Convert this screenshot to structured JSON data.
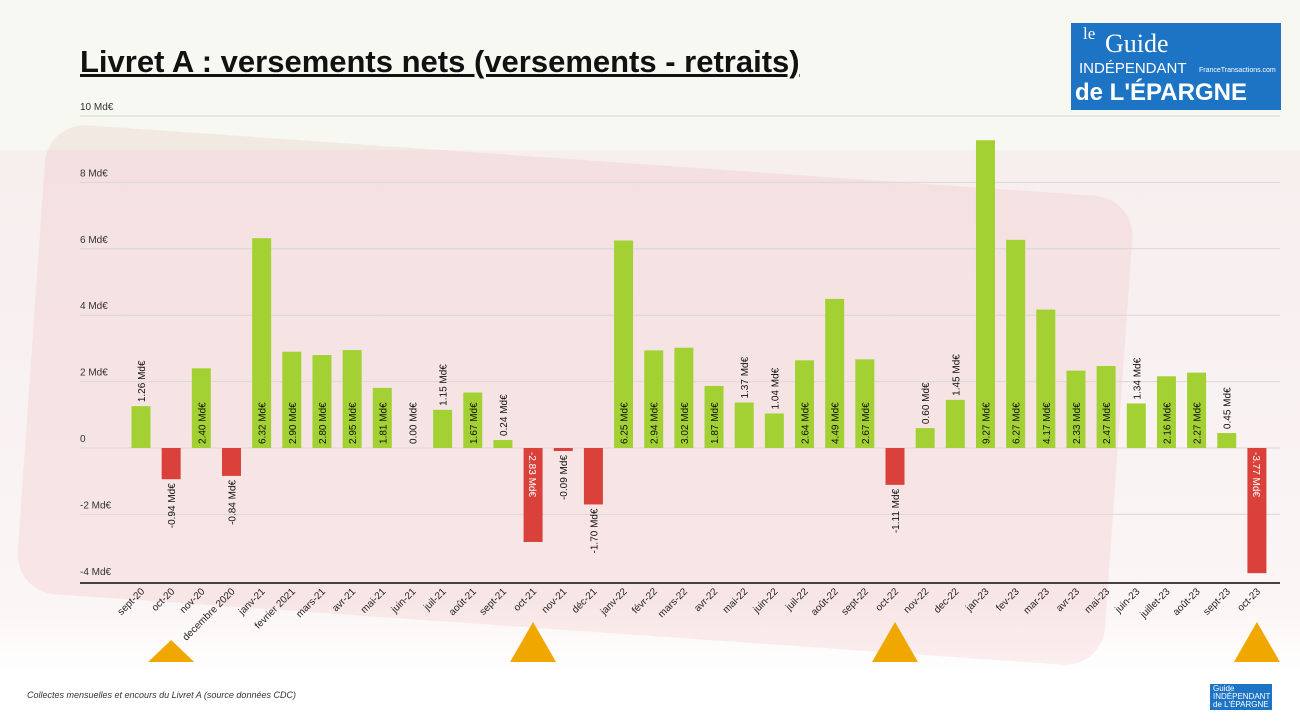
{
  "header": {
    "title": "Livret A : versements nets (versements - retraits)"
  },
  "logo": {
    "line1": "le",
    "line2": "Guide",
    "line3": "INDÉPENDANT",
    "line4": "de L'ÉPARGNE",
    "tagline": "FranceTransactions.com"
  },
  "footer": {
    "source": "Collectes mensuelles et encours du Livret A (source données CDC)",
    "small_logo": "Guide INDÉPENDANT de L'ÉPARGNE"
  },
  "chart_data": {
    "type": "bar",
    "title": "Livret A : versements nets (versements - retraits)",
    "xlabel": "",
    "ylabel": "",
    "ylim": [
      -4,
      10
    ],
    "yticks": [
      10,
      8,
      6,
      4,
      2,
      0,
      -2,
      -4
    ],
    "ytick_labels": [
      "10 Md€",
      "8 Md€",
      "6 Md€",
      "4 Md€",
      "2 Md€",
      "0",
      "-2 Md€",
      "-4 Md€"
    ],
    "grid": true,
    "unit": "Md€",
    "categories": [
      "sept-20",
      "oct-20",
      "nov-20",
      "decembre 2020",
      "janv-21",
      "fevrier 2021",
      "mars-21",
      "avr-21",
      "mai-21",
      "juin-21",
      "juil-21",
      "août-21",
      "sept-21",
      "oct-21",
      "nov-21",
      "déc-21",
      "janv-22",
      "févr-22",
      "mars-22",
      "avr-22",
      "mai-22",
      "juin-22",
      "juil-22",
      "août-22",
      "sept-22",
      "oct-22",
      "nov-22",
      "dec-22",
      "jan-23",
      "fev-23",
      "mar-23",
      "avr-23",
      "mai-23",
      "juin-23",
      "juillet-23",
      "août-23",
      "sept-23",
      "oct-23"
    ],
    "values": [
      1.26,
      -0.94,
      2.4,
      -0.84,
      6.32,
      2.9,
      2.8,
      2.95,
      1.81,
      0.0,
      1.15,
      1.67,
      0.24,
      -2.83,
      -0.09,
      -1.7,
      6.25,
      2.94,
      3.02,
      1.87,
      1.37,
      1.04,
      2.64,
      4.49,
      2.67,
      -1.11,
      0.6,
      1.45,
      9.27,
      6.27,
      4.17,
      2.33,
      2.47,
      1.34,
      2.16,
      2.27,
      0.45,
      -3.77
    ],
    "markers": [
      "oct-20",
      "oct-21",
      "oct-22",
      "oct-23"
    ],
    "colors": {
      "positive": "#a3d133",
      "negative": "#d9413a",
      "marker": "#f0a800"
    }
  }
}
